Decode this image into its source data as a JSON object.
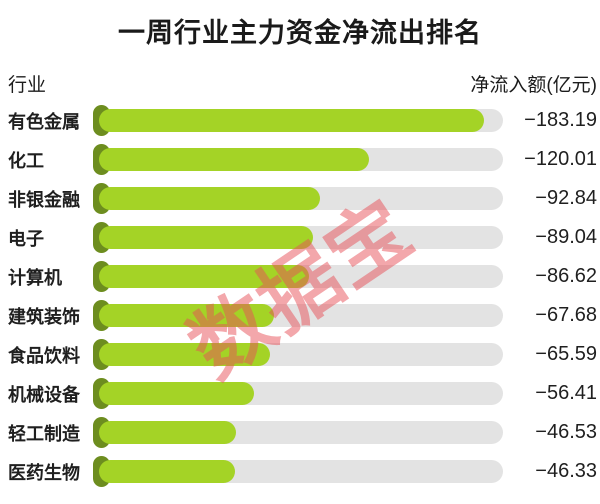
{
  "title": "一周行业主力资金净流出排名",
  "header": {
    "left": "行业",
    "right": "净流入额(亿元)"
  },
  "watermark": "数据宝",
  "colors": {
    "bar": "#a4d326",
    "bar_cap": "#6d8d1f",
    "track": "#e3e3e3",
    "title_text": "#1a1a1a",
    "watermark": "#e85058"
  },
  "chart_data": {
    "type": "bar",
    "orientation": "horizontal",
    "title": "一周行业主力资金净流出排名",
    "category_label": "行业",
    "value_label": "净流入额(亿元)",
    "legend": "none",
    "grid": "off",
    "categories": [
      "有色金属",
      "化工",
      "非银金融",
      "电子",
      "计算机",
      "建筑装饰",
      "食品饮料",
      "机械设备",
      "轻工制造",
      "医药生物"
    ],
    "values": [
      -183.19,
      -120.01,
      -92.84,
      -89.04,
      -86.62,
      -67.68,
      -65.59,
      -56.41,
      -46.53,
      -46.33
    ],
    "value_texts": [
      "−183.19",
      "−120.01",
      "−92.84",
      "−89.04",
      "−86.62",
      "−67.68",
      "−65.59",
      "−56.41",
      "−46.53",
      "−46.33"
    ],
    "value_range_abs": [
      0,
      200
    ]
  }
}
